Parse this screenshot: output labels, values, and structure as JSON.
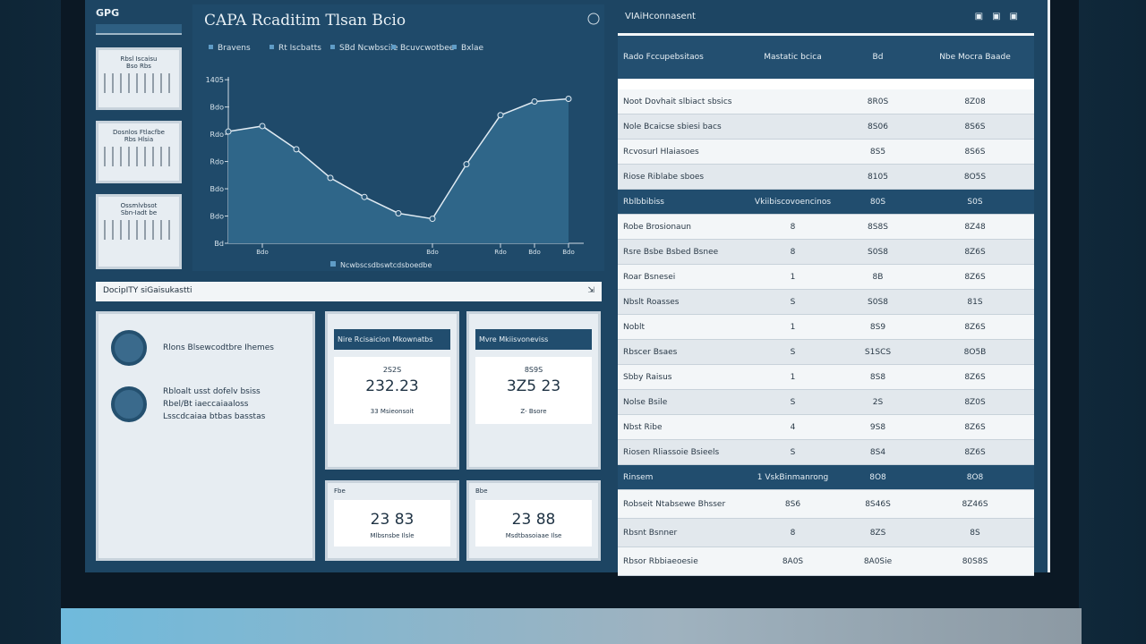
{
  "sidebar": {
    "logo": "GPG",
    "cards": [
      {
        "lines": [
          "Rbsl Iscaisu",
          "Bso Rbs"
        ]
      },
      {
        "lines": [
          "Dosnlos Ftlacfbe",
          "Rbs Hlsia"
        ]
      },
      {
        "lines": [
          "Ossmlvbsot",
          "Sbn-Iadt be"
        ]
      }
    ]
  },
  "chart_data": {
    "type": "line",
    "title": "CAPA Rcaditim Tlsan Bcio",
    "legend": [
      "Bravens",
      "Rt Iscbatts",
      "SBd Ncwbscile",
      "Bcuvcwotbee",
      "Bxlae"
    ],
    "x_label": "Ncwbscsdbswtcdsboedbe",
    "color": "#dfeaf2",
    "area_color": "#2f6689",
    "categories": [
      null,
      "Bdo",
      null,
      null,
      null,
      null,
      "Bdo",
      null,
      "Rdo",
      "Bdo",
      "Bdo"
    ],
    "values": [
      4.1,
      4.3,
      3.45,
      2.4,
      1.7,
      1.1,
      0.9,
      2.9,
      4.7,
      5.2,
      5.3
    ],
    "ylim": [
      0,
      6.3
    ],
    "yticks": [
      {
        "value": 0,
        "label": "Bd"
      },
      {
        "value": 1,
        "label": "Bdo"
      },
      {
        "value": 2,
        "label": "Bdo"
      },
      {
        "value": 3,
        "label": "Rdo"
      },
      {
        "value": 4,
        "label": "Rdo"
      },
      {
        "value": 5,
        "label": "Bdo"
      },
      {
        "value": 6,
        "label": "1405"
      }
    ]
  },
  "section_bar": {
    "title": "DocipITY siGaisukastti"
  },
  "info_panel": {
    "items": [
      {
        "lines": [
          "Rlons Blsewcodtbre Ihemes"
        ]
      },
      {
        "lines": [
          "Rbloalt usst dofelv bsiss",
          "Rbel/Bt iaeccaiaaloss",
          "Lsscdcaiaa btbas basstas"
        ]
      }
    ]
  },
  "stat_cards": [
    {
      "title": "Nire Rcisaicion Mkownatbs",
      "top": "2S2S",
      "value": "232.23",
      "foot": "33 Msieonsoit"
    },
    {
      "title": "Mvre Mkiisvoneviss",
      "top": "8S9S",
      "value": "3Z5 23",
      "foot": "Z- Bsore"
    },
    {
      "label": "Fbe",
      "top": "",
      "value": "23 83",
      "foot": "Mlbsnsbe Ilsle"
    },
    {
      "label": "Bbe",
      "top": "",
      "value": "23 88",
      "foot": "Msdtbasoiaae Ilse"
    }
  ],
  "table": {
    "title": "VIAiHconnasent",
    "header": [
      "Rado Fccupebsitaos",
      "Mastatic bcica",
      "Bd",
      "Nbe Mocra Baade"
    ],
    "groups": [
      {
        "rows": [
          [
            "Noot Dovhait slbiact sbsics",
            "",
            "8R0S",
            "8Z08"
          ],
          [
            "Nole Bcaicse sbiesi bacs",
            "",
            "8S06",
            "8S6S"
          ],
          [
            "Rcvosurl Hlaiasoes",
            "",
            "8S5",
            "8S6S"
          ],
          [
            "Riose Riblabe sboes",
            "",
            "8105",
            "8O5S"
          ]
        ]
      },
      {
        "section": [
          "Rblbbibiss",
          "Vkiibiscovoencinos",
          "80S",
          "S0S"
        ],
        "rows": [
          [
            "Robe Brosionaun",
            "8",
            "8S8S",
            "8Z48"
          ],
          [
            "Rsre Bsbe Bsbed Bsnee",
            "8",
            "S0S8",
            "8Z6S"
          ],
          [
            "Roar Bsnesei",
            "1",
            "8B",
            "8Z6S"
          ],
          [
            "Nbslt Roasses",
            "S",
            "S0S8",
            "81S"
          ],
          [
            "Noblt",
            "1",
            "8S9",
            "8Z6S"
          ],
          [
            "Rbscer Bsaes",
            "S",
            "S1SCS",
            "8O5B"
          ],
          [
            "Sbby Raisus",
            "1",
            "8S8",
            "8Z6S"
          ],
          [
            "Nolse Bsile",
            "S",
            "2S",
            "8Z0S"
          ],
          [
            "Nbst Ribe",
            "4",
            "9S8",
            "8Z6S"
          ],
          [
            "Riosen Rliassoie Bsieels",
            "S",
            "8S4",
            "8Z6S"
          ]
        ]
      },
      {
        "section": [
          "Rinsem",
          "1 VskBinmanrong",
          "8O8",
          "8O8"
        ],
        "rows": [
          [
            "Robseit Ntabsewe Bhsser",
            "8S6",
            "8S46S",
            "8Z46S"
          ],
          [
            "Rbsnt Bsnner",
            "8",
            "8ZS",
            "8S"
          ],
          [
            "Rbsor Rbbiaeoesie",
            "8A0S",
            "8A0Sie",
            "80S8S"
          ]
        ]
      }
    ]
  }
}
